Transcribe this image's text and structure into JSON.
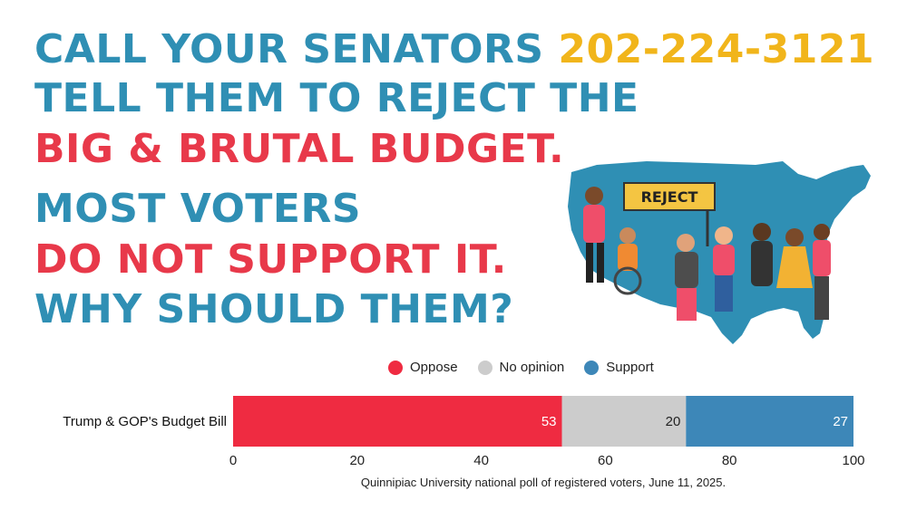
{
  "headline": {
    "line1": "CALL YOUR SENATORS",
    "phone": "202-224-3121",
    "line2": "TELL THEM TO REJECT THE",
    "line3": "BIG & BRUTAL BUDGET.",
    "line4": "MOST VOTERS",
    "line5": "DO NOT SUPPORT IT.",
    "line6": "WHY SHOULD THEM?"
  },
  "illustration": {
    "sign_text": "REJECT",
    "map_color": "#2f8fb4"
  },
  "colors": {
    "teal": "#2f8fb4",
    "red": "#e8394a",
    "gold": "#f1b51b",
    "oppose": "#ef2b41",
    "no_opinion": "#cccccc",
    "support": "#3d87b8"
  },
  "chart_data": {
    "type": "bar",
    "orientation": "horizontal",
    "stacked": true,
    "categories": [
      "Trump & GOP's Budget Bill"
    ],
    "series": [
      {
        "name": "Oppose",
        "values": [
          53
        ],
        "color": "#ef2b41",
        "label_color": "#ffffff"
      },
      {
        "name": "No opinion",
        "values": [
          20
        ],
        "color": "#cccccc",
        "label_color": "#222222"
      },
      {
        "name": "Support",
        "values": [
          27
        ],
        "color": "#3d87b8",
        "label_color": "#ffffff"
      }
    ],
    "xlim": [
      0,
      100
    ],
    "xticks": [
      0,
      20,
      40,
      60,
      80,
      100
    ],
    "legend_position": "top",
    "grid": false,
    "source": "Quinnipiac University national poll of registered voters, June 11, 2025."
  }
}
